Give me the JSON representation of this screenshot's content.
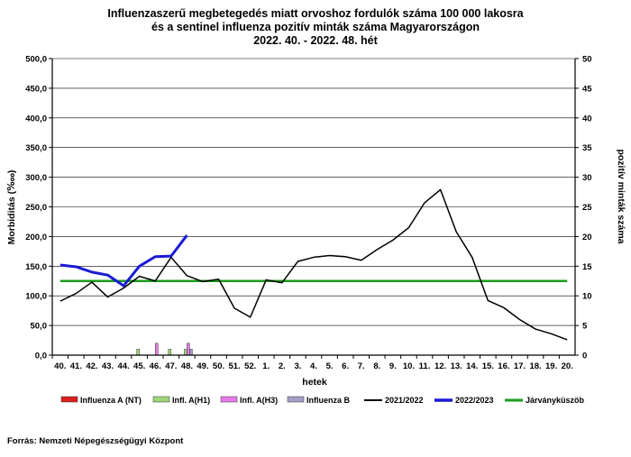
{
  "chart_data": {
    "type": "line",
    "title_lines": [
      "Influenzaszerű megbetegedés miatt orvoshoz fordulók száma 100 000 lakosra",
      "és a sentinel influenza pozitív minták száma Magyarországon",
      "2022. 40. - 2022. 48. hét"
    ],
    "xlabel": "hetek",
    "ylabel_left": "Morbiditás (‱)",
    "ylabel_right": "pozitív minták száma",
    "categories": [
      "40.",
      "41.",
      "42.",
      "43.",
      "44.",
      "45.",
      "46.",
      "47.",
      "48.",
      "49.",
      "50.",
      "51.",
      "52.",
      "1.",
      "2.",
      "3.",
      "4.",
      "5.",
      "6.",
      "7.",
      "8.",
      "9.",
      "10.",
      "11.",
      "12.",
      "13.",
      "14.",
      "15.",
      "16.",
      "17.",
      "18.",
      "19.",
      "20."
    ],
    "ylim_left": [
      0,
      500
    ],
    "ylim_right": [
      0,
      50
    ],
    "left_ticks": [
      "0,0",
      "50,0",
      "100,0",
      "150,0",
      "200,0",
      "250,0",
      "300,0",
      "350,0",
      "400,0",
      "450,0",
      "500,0"
    ],
    "right_ticks": [
      "0",
      "5",
      "10",
      "15",
      "20",
      "25",
      "30",
      "35",
      "40",
      "45",
      "50"
    ],
    "grid": "horizontal-only",
    "legend_position": "bottom",
    "line_series": [
      {
        "name": "2021/2022",
        "color": "#000000",
        "values": [
          91,
          104,
          123,
          98,
          113,
          133,
          125,
          165,
          134,
          124,
          128,
          79,
          64,
          127,
          122,
          158,
          165,
          168,
          166,
          160,
          178,
          194,
          215,
          257,
          279,
          208,
          165,
          92,
          80,
          60,
          44,
          36,
          26
        ]
      },
      {
        "name": "2022/2023",
        "color": "#1a1ad4",
        "values": [
          152,
          149,
          140,
          135,
          117,
          150,
          166,
          167,
          202
        ]
      }
    ],
    "threshold": {
      "name": "Járványküszöb",
      "color": "#1a9c1a",
      "value": 125
    },
    "bar_series": [
      {
        "name": "Influenza A (NT)",
        "color": "#dd1f1f",
        "values": [
          0,
          0,
          0,
          0,
          0,
          0,
          0,
          0,
          0
        ]
      },
      {
        "name": "Infl. A(H1)",
        "color": "#9ed67a",
        "values": [
          0,
          0,
          0,
          0,
          0,
          1,
          0,
          1,
          1
        ]
      },
      {
        "name": "Infl. A(H3)",
        "color": "#e87ae8",
        "values": [
          0,
          0,
          0,
          0,
          0,
          0,
          2,
          0,
          2
        ]
      },
      {
        "name": "Influenza B",
        "color": "#a89cc8",
        "values": [
          0,
          0,
          0,
          0,
          0,
          0,
          0,
          0,
          1
        ]
      }
    ]
  },
  "source": "Forrás: Nemzeti Népegészségügyi Központ"
}
